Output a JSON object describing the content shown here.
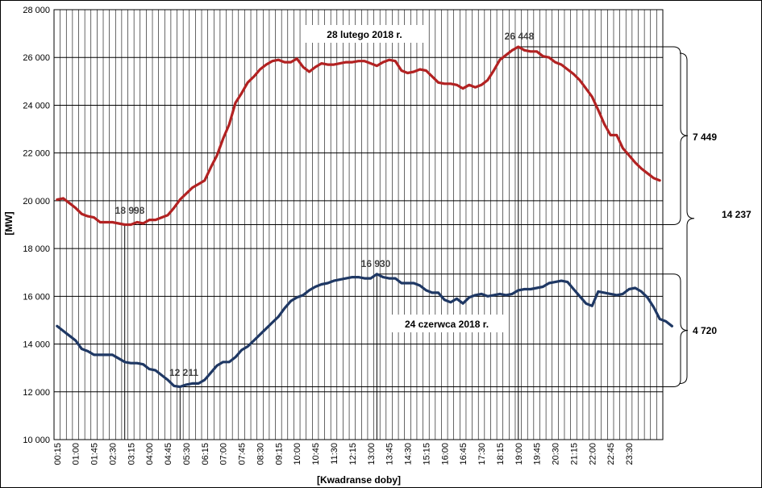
{
  "chart_data": {
    "type": "line",
    "xlabel": "[Kwadranse doby]",
    "ylabel": "[MW]",
    "ylim": [
      10000,
      28000
    ],
    "yticks": [
      10000,
      12000,
      14000,
      16000,
      18000,
      20000,
      22000,
      24000,
      26000,
      28000
    ],
    "ytick_labels": [
      "10 000",
      "12 000",
      "14 000",
      "16 000",
      "18 000",
      "20 000",
      "22 000",
      "24 000",
      "26 000",
      "28 000"
    ],
    "x_tick_labels": [
      "00:15",
      "01:00",
      "01:45",
      "02:30",
      "03:15",
      "04:00",
      "04:45",
      "05:30",
      "06:15",
      "07:00",
      "07:45",
      "08:30",
      "09:15",
      "10:00",
      "10:45",
      "11:30",
      "12:15",
      "13:00",
      "13:45",
      "14:30",
      "15:15",
      "16:00",
      "16:45",
      "17:30",
      "18:15",
      "19:00",
      "19:45",
      "20:30",
      "21:15",
      "22:00",
      "22:45",
      "23:30"
    ],
    "grid": true,
    "series": [
      {
        "name": "28 lutego 2018  r.",
        "color": "#b22222",
        "values": [
          20050,
          20100,
          19900,
          19700,
          19450,
          19350,
          19300,
          19100,
          19100,
          19100,
          19050,
          19000,
          19000,
          19100,
          19050,
          19200,
          19200,
          19300,
          19400,
          19700,
          20050,
          20300,
          20550,
          20700,
          20850,
          21400,
          21900,
          22600,
          23200,
          24100,
          24500,
          24950,
          25200,
          25500,
          25700,
          25850,
          25900,
          25800,
          25800,
          25950,
          25600,
          25400,
          25600,
          25750,
          25700,
          25700,
          25750,
          25800,
          25800,
          25850,
          25850,
          25750,
          25650,
          25800,
          25900,
          25850,
          25450,
          25350,
          25400,
          25500,
          25450,
          25200,
          24950,
          24900,
          24900,
          24850,
          24700,
          24850,
          24750,
          24850,
          25050,
          25450,
          25900,
          26100,
          26300,
          26448,
          26300,
          26250,
          26250,
          26050,
          26000,
          25800,
          25700,
          25500,
          25300,
          25050,
          24700,
          24350,
          23800,
          23200,
          22750,
          22750,
          22200,
          21900,
          21600,
          21350,
          21150,
          20950,
          20850
        ]
      },
      {
        "name": "24 czerwca 2018 r.",
        "color": "#1f3864",
        "values": [
          14750,
          14550,
          14350,
          14150,
          13800,
          13700,
          13550,
          13550,
          13550,
          13550,
          13400,
          13250,
          13200,
          13200,
          13150,
          12950,
          12900,
          12700,
          12500,
          12250,
          12211,
          12300,
          12350,
          12350,
          12500,
          12800,
          13100,
          13250,
          13250,
          13450,
          13750,
          13900,
          14150,
          14400,
          14650,
          14900,
          15150,
          15500,
          15800,
          15950,
          16050,
          16250,
          16400,
          16500,
          16550,
          16650,
          16700,
          16750,
          16800,
          16800,
          16750,
          16750,
          16930,
          16800,
          16750,
          16750,
          16550,
          16550,
          16550,
          16450,
          16250,
          16150,
          16150,
          15850,
          15750,
          15900,
          15700,
          15950,
          16050,
          16100,
          16000,
          16050,
          16100,
          16050,
          16100,
          16250,
          16300,
          16300,
          16350,
          16400,
          16550,
          16600,
          16650,
          16600,
          16300,
          16000,
          15700,
          15600,
          16200,
          16150,
          16100,
          16050,
          16100,
          16300,
          16350,
          16200,
          15950,
          15550,
          15050,
          14950,
          14750
        ]
      }
    ],
    "annotations": {
      "title_feb": "28 lutego 2018  r.",
      "title_jun": "24 czerwca 2018 r.",
      "feb_min_label": "18 998",
      "feb_max_label": "26 448",
      "jun_min_label": "12 211",
      "jun_max_label": "16 930",
      "feb_range_label": "7 449",
      "jun_range_label": "4 720",
      "total_range_label": "14 237"
    }
  }
}
